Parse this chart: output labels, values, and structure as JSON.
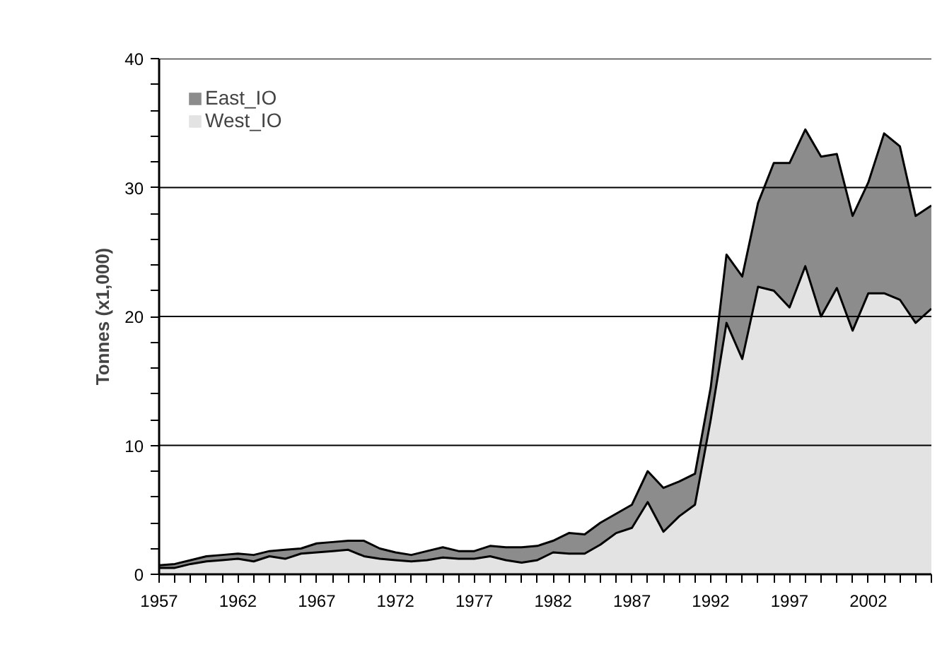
{
  "chart_data": {
    "type": "area",
    "stacked": true,
    "ylabel": "Tonnes (x1,000)",
    "x": [
      1957,
      1958,
      1959,
      1960,
      1961,
      1962,
      1963,
      1964,
      1965,
      1966,
      1967,
      1968,
      1969,
      1970,
      1971,
      1972,
      1973,
      1974,
      1975,
      1976,
      1977,
      1978,
      1979,
      1980,
      1981,
      1982,
      1983,
      1984,
      1985,
      1986,
      1987,
      1988,
      1989,
      1990,
      1991,
      1992,
      1993,
      1994,
      1995,
      1996,
      1997,
      1998,
      1999,
      2000,
      2001,
      2002,
      2003,
      2004,
      2005,
      2006
    ],
    "series": [
      {
        "name": "West_IO",
        "color": "#e3e3e3",
        "values": [
          0.5,
          0.5,
          0.8,
          1.0,
          1.1,
          1.2,
          1.0,
          1.4,
          1.2,
          1.6,
          1.7,
          1.8,
          1.9,
          1.4,
          1.2,
          1.1,
          1.0,
          1.1,
          1.3,
          1.2,
          1.2,
          1.4,
          1.1,
          0.9,
          1.1,
          1.7,
          1.6,
          1.6,
          2.3,
          3.2,
          3.6,
          5.6,
          3.3,
          4.5,
          5.4,
          12.0,
          19.5,
          16.7,
          22.3,
          22.0,
          20.7,
          23.9,
          20.0,
          22.2,
          18.9,
          21.8,
          21.8,
          21.3,
          19.5,
          20.6
        ]
      },
      {
        "name": "East_IO",
        "color": "#8c8c8c",
        "values": [
          0.2,
          0.3,
          0.3,
          0.4,
          0.4,
          0.4,
          0.5,
          0.4,
          0.7,
          0.4,
          0.7,
          0.7,
          0.7,
          1.2,
          0.8,
          0.6,
          0.5,
          0.7,
          0.8,
          0.6,
          0.6,
          0.8,
          1.0,
          1.2,
          1.1,
          0.9,
          1.6,
          1.5,
          1.7,
          1.5,
          1.8,
          2.4,
          3.4,
          2.7,
          2.4,
          2.5,
          5.3,
          6.4,
          6.5,
          9.9,
          11.2,
          10.6,
          12.4,
          10.4,
          8.9,
          8.6,
          12.4,
          11.9,
          8.3,
          8.0
        ]
      }
    ],
    "xlim": [
      1957,
      2006
    ],
    "xticks": [
      1957,
      {
        "value": 1958,
        "label": null
      },
      {
        "value": 1959,
        "label": null
      },
      {
        "value": 1960,
        "label": null
      },
      {
        "value": 1961,
        "label": null
      },
      1962,
      {
        "value": 1963,
        "label": null
      },
      {
        "value": 1964,
        "label": null
      },
      {
        "value": 1965,
        "label": null
      },
      {
        "value": 1966,
        "label": null
      },
      1967,
      {
        "value": 1968,
        "label": null
      },
      {
        "value": 1969,
        "label": null
      },
      {
        "value": 1970,
        "label": null
      },
      {
        "value": 1971,
        "label": null
      },
      1972,
      {
        "value": 1973,
        "label": null
      },
      {
        "value": 1974,
        "label": null
      },
      {
        "value": 1975,
        "label": null
      },
      {
        "value": 1976,
        "label": null
      },
      1977,
      {
        "value": 1978,
        "label": null
      },
      {
        "value": 1979,
        "label": null
      },
      {
        "value": 1980,
        "label": null
      },
      {
        "value": 1981,
        "label": null
      },
      1982,
      {
        "value": 1983,
        "label": null
      },
      {
        "value": 1984,
        "label": null
      },
      {
        "value": 1985,
        "label": null
      },
      {
        "value": 1986,
        "label": null
      },
      1987,
      {
        "value": 1988,
        "label": null
      },
      {
        "value": 1989,
        "label": null
      },
      {
        "value": 1990,
        "label": null
      },
      {
        "value": 1991,
        "label": null
      },
      1992,
      {
        "value": 1993,
        "label": null
      },
      {
        "value": 1994,
        "label": null
      },
      {
        "value": 1995,
        "label": null
      },
      {
        "value": 1996,
        "label": null
      },
      1997,
      {
        "value": 1998,
        "label": null
      },
      {
        "value": 1999,
        "label": null
      },
      {
        "value": 2000,
        "label": null
      },
      {
        "value": 2001,
        "label": null
      },
      2002,
      {
        "value": 2003,
        "label": null
      },
      {
        "value": 2004,
        "label": null
      },
      {
        "value": 2005,
        "label": null
      },
      {
        "value": 2006,
        "label": null
      }
    ],
    "ylim": [
      0,
      40
    ],
    "yticks": [
      0,
      {
        "value": 2,
        "label": null
      },
      {
        "value": 4,
        "label": null
      },
      {
        "value": 6,
        "label": null
      },
      {
        "value": 8,
        "label": null
      },
      10,
      {
        "value": 12,
        "label": null
      },
      {
        "value": 14,
        "label": null
      },
      {
        "value": 16,
        "label": null
      },
      {
        "value": 18,
        "label": null
      },
      20,
      {
        "value": 22,
        "label": null
      },
      {
        "value": 24,
        "label": null
      },
      {
        "value": 26,
        "label": null
      },
      {
        "value": 28,
        "label": null
      },
      30,
      {
        "value": 32,
        "label": null
      },
      {
        "value": 34,
        "label": null
      },
      {
        "value": 36,
        "label": null
      },
      {
        "value": 38,
        "label": null
      },
      40
    ],
    "grid": "y",
    "legend": "top left"
  }
}
